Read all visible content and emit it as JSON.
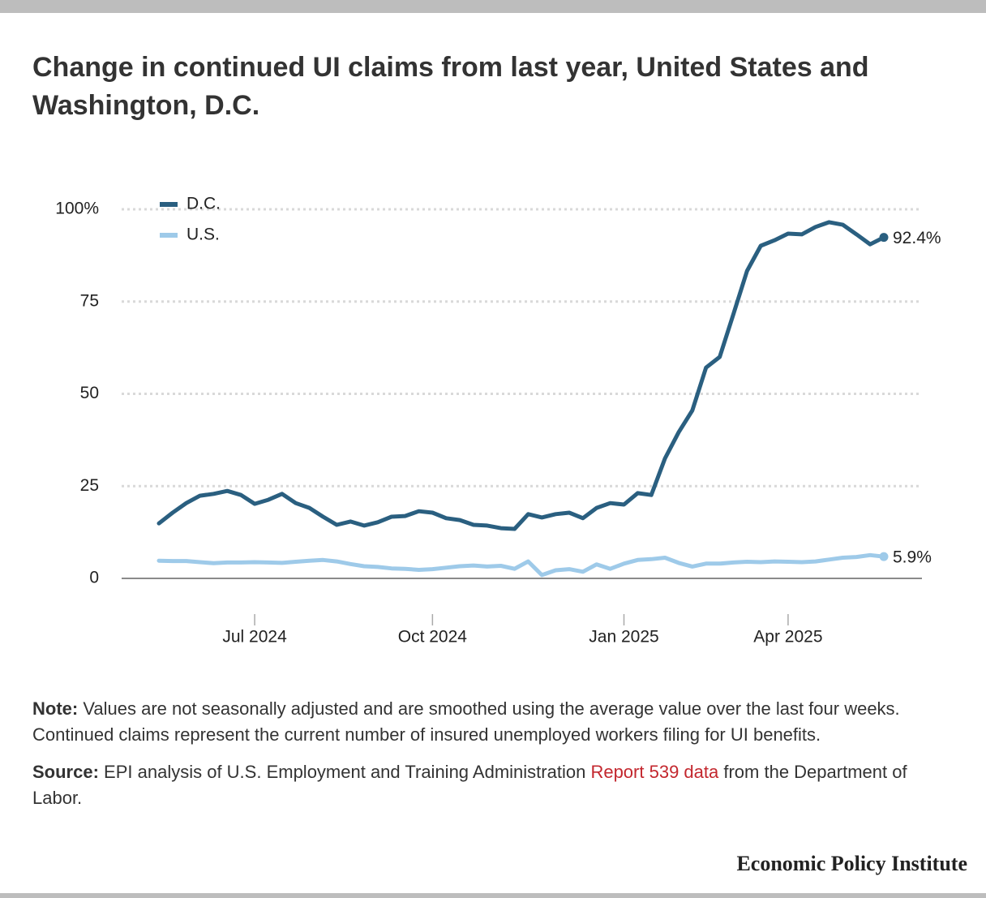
{
  "chart_data": {
    "type": "line",
    "title": "Change in continued UI claims from last year, United States and Washington, D.C.",
    "categories": [
      null,
      null,
      null,
      null,
      null,
      null,
      null,
      "Jul 2024",
      null,
      null,
      null,
      null,
      null,
      null,
      null,
      null,
      null,
      null,
      null,
      null,
      "Oct 2024",
      null,
      null,
      null,
      null,
      null,
      null,
      null,
      null,
      null,
      null,
      null,
      null,
      null,
      "Jan 2025",
      null,
      null,
      null,
      null,
      null,
      null,
      null,
      null,
      null,
      null,
      null,
      "Apr 2025",
      null,
      null,
      null,
      null,
      null,
      null,
      null
    ],
    "series": [
      {
        "name": "D.C.",
        "color": "#2a5f80",
        "values": [
          14.9,
          17.8,
          20.4,
          22.4,
          22.9,
          23.7,
          22.6,
          20.2,
          21.3,
          22.9,
          20.4,
          19.1,
          16.7,
          14.5,
          15.4,
          14.3,
          15.2,
          16.7,
          16.9,
          18.2,
          17.8,
          16.3,
          15.8,
          14.5,
          14.3,
          13.6,
          13.4,
          17.4,
          16.5,
          17.4,
          17.8,
          16.3,
          19.1,
          20.4,
          20.0,
          23.1,
          22.6,
          32.5,
          39.6,
          45.5,
          57.1,
          60.0,
          71.6,
          83.3,
          90.1,
          91.6,
          93.4,
          93.2,
          95.2,
          96.5,
          95.8,
          93.2,
          90.5,
          92.4
        ],
        "value_labels": [
          null,
          null,
          null,
          null,
          null,
          null,
          null,
          null,
          null,
          null,
          null,
          null,
          null,
          null,
          null,
          null,
          null,
          null,
          null,
          null,
          null,
          null,
          null,
          null,
          null,
          null,
          null,
          null,
          null,
          null,
          null,
          null,
          null,
          null,
          null,
          null,
          null,
          null,
          null,
          null,
          null,
          null,
          null,
          null,
          null,
          null,
          null,
          null,
          null,
          null,
          null,
          null,
          null,
          "92.4%"
        ]
      },
      {
        "name": "U.S.",
        "color": "#9ecae9",
        "values": [
          4.8,
          4.7,
          4.7,
          4.4,
          4.1,
          4.3,
          4.3,
          4.4,
          4.3,
          4.2,
          4.5,
          4.8,
          5.0,
          4.6,
          3.9,
          3.3,
          3.1,
          2.7,
          2.6,
          2.3,
          2.5,
          2.9,
          3.3,
          3.5,
          3.2,
          3.4,
          2.6,
          4.6,
          0.9,
          2.2,
          2.5,
          1.8,
          3.8,
          2.6,
          4.0,
          5.0,
          5.2,
          5.6,
          4.2,
          3.2,
          4.0,
          4.0,
          4.3,
          4.5,
          4.4,
          4.6,
          4.5,
          4.4,
          4.6,
          5.1,
          5.6,
          5.8,
          6.3,
          5.9
        ],
        "value_labels": [
          null,
          null,
          null,
          null,
          null,
          null,
          null,
          null,
          null,
          null,
          null,
          null,
          null,
          null,
          null,
          null,
          null,
          null,
          null,
          null,
          null,
          null,
          null,
          null,
          null,
          null,
          null,
          null,
          null,
          null,
          null,
          null,
          null,
          null,
          null,
          null,
          null,
          null,
          null,
          null,
          null,
          null,
          null,
          null,
          null,
          null,
          null,
          null,
          null,
          null,
          null,
          null,
          null,
          "5.9%"
        ]
      }
    ],
    "ylim": [
      -10,
      100
    ],
    "yticks": [
      0,
      25,
      50,
      75,
      {
        "value": 100,
        "label": "100%"
      }
    ],
    "grid": true,
    "legend": "top-left"
  },
  "note": {
    "label": "Note:",
    "text": "Values are not seasonally adjusted and are smoothed using the average value over the last four weeks. Continued claims represent the current number of insured unemployed workers filing for UI benefits."
  },
  "source": {
    "label": "Source:",
    "text_before": "EPI analysis of U.S. Employment and Training Administration",
    "link": "Report 539 data",
    "text_after": "from the Department of Labor."
  },
  "footer": "Economic Policy Institute"
}
